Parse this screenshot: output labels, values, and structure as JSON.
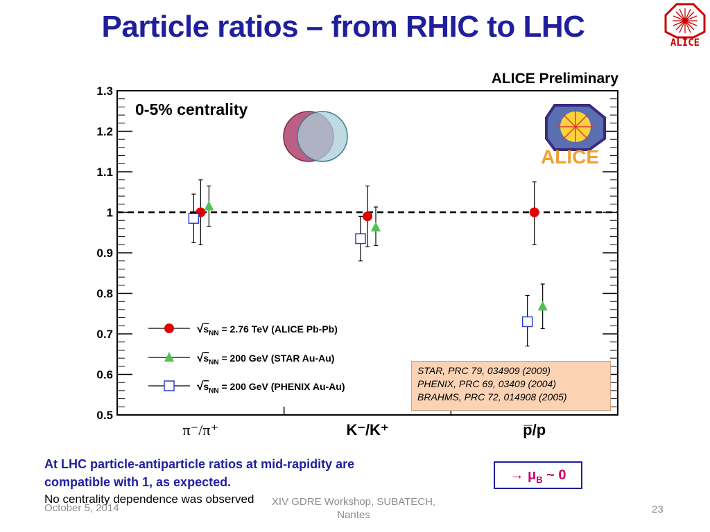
{
  "slide": {
    "title": "Particle ratios – from RHIC to LHC",
    "logo_text": "ALICE",
    "preliminary": "ALICE Preliminary",
    "centrality": "0-5% centrality",
    "alice_logo_text": "ALICE",
    "references": [
      "STAR, PRC 79, 034909 (2009)",
      "PHENIX, PRC 69, 03409 (2004)",
      "BRAHMS, PRC 72, 014908 (2005)"
    ],
    "conclusion_line1": "At LHC particle-antiparticle ratios at mid-rapidity are",
    "conclusion_line2": "compatible with 1, as expected.",
    "note": "No centrality dependence was observed",
    "mu_b_box": "→ μB ~ 0",
    "footer_date": "October 5, 2014",
    "footer_event_line1": "XIV GDRE Workshop, SUBATECH,",
    "footer_event_line2": "Nantes",
    "footer_page": "23"
  },
  "colors": {
    "title": "#1f1f9e",
    "alice": "#e00000",
    "star": "#4ec44e",
    "phenix": "#2e3fcf",
    "reference_box": "#fbd3b4"
  },
  "chart_data": {
    "type": "scatter",
    "categories": [
      "π⁻/π⁺",
      "K⁻/K⁺",
      "p̅/p"
    ],
    "ylim": [
      0.5,
      1.3
    ],
    "yticks": [
      "0.5",
      "0.6",
      "0.7",
      "0.8",
      "0.9",
      "1",
      "1.1",
      "1.2",
      "1.3"
    ],
    "reference_line": 1.0,
    "grid": false,
    "legend_position": "bottom-left",
    "series": [
      {
        "name": "√s_NN = 2.76 TeV (ALICE Pb-Pb)",
        "marker": "circle",
        "color": "#e00000",
        "values": [
          1.0,
          0.99,
          1.0
        ],
        "err_low": [
          0.08,
          0.075,
          0.08
        ],
        "err_high": [
          0.08,
          0.075,
          0.075
        ]
      },
      {
        "name": "√s_NN = 200 GeV (STAR Au-Au)",
        "marker": "triangle",
        "color": "#4ec44e",
        "values": [
          1.015,
          0.963,
          0.768
        ],
        "err_low": [
          0.05,
          0.045,
          0.055
        ],
        "err_high": [
          0.05,
          0.05,
          0.055
        ]
      },
      {
        "name": "√s_NN = 200 GeV (PHENIX Au-Au)",
        "marker": "square",
        "color": "#2e3fcf",
        "values": [
          0.985,
          0.935,
          0.73
        ],
        "err_low": [
          0.06,
          0.055,
          0.06
        ],
        "err_high": [
          0.06,
          0.055,
          0.065
        ]
      }
    ]
  }
}
